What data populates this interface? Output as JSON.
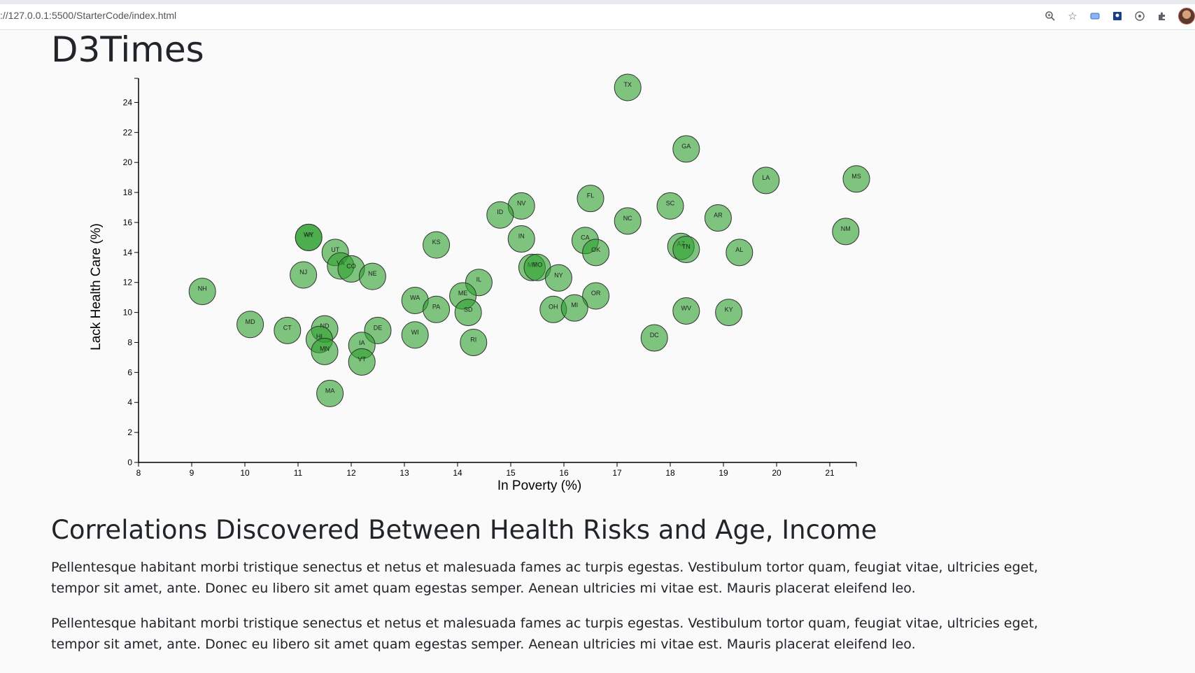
{
  "browser": {
    "url": "://127.0.0.1:5500/StarterCode/index.html",
    "icons": [
      "zoom-icon",
      "bookmark-star-icon",
      "extension-icon",
      "screen-icon",
      "sync-icon",
      "puzzle-icon"
    ]
  },
  "page": {
    "title": "D3Times",
    "section_heading": "Correlations Discovered Between Health Risks and Age, Income",
    "paragraphs": [
      "Pellentesque habitant morbi tristique senectus et netus et malesuada fames ac turpis egestas. Vestibulum tortor quam, feugiat vitae, ultricies eget, tempor sit amet, ante. Donec eu libero sit amet quam egestas semper. Aenean ultricies mi vitae est. Mauris placerat eleifend leo.",
      "Pellentesque habitant morbi tristique senectus et netus et malesuada fames ac turpis egestas. Vestibulum tortor quam, feugiat vitae, ultricies eget, tempor sit amet, ante. Donec eu libero sit amet quam egestas semper. Aenean ultricies mi vitae est. Mauris placerat eleifend leo."
    ]
  },
  "chart_data": {
    "type": "scatter",
    "xlabel": "In Poverty (%)",
    "ylabel": "Lack Health Care (%)",
    "xlim": [
      8,
      21.5
    ],
    "ylim": [
      0,
      25
    ],
    "xticks": [
      8,
      9,
      10,
      11,
      12,
      13,
      14,
      15,
      16,
      17,
      18,
      19,
      20,
      21
    ],
    "yticks": [
      0,
      2,
      4,
      6,
      8,
      10,
      12,
      14,
      16,
      18,
      20,
      22,
      24
    ],
    "point_color": "#2ca02c",
    "points": [
      {
        "label": "TX",
        "x": 17.2,
        "y": 25.0
      },
      {
        "label": "GA",
        "x": 18.3,
        "y": 20.9
      },
      {
        "label": "LA",
        "x": 19.8,
        "y": 18.8
      },
      {
        "label": "MS",
        "x": 21.5,
        "y": 18.9
      },
      {
        "label": "FL",
        "x": 16.5,
        "y": 17.6
      },
      {
        "label": "NV",
        "x": 15.2,
        "y": 17.1
      },
      {
        "label": "SC",
        "x": 18.0,
        "y": 17.1
      },
      {
        "label": "ID",
        "x": 14.8,
        "y": 16.5
      },
      {
        "label": "NC",
        "x": 17.2,
        "y": 16.1
      },
      {
        "label": "AR",
        "x": 18.9,
        "y": 16.3
      },
      {
        "label": "NM",
        "x": 21.3,
        "y": 15.4
      },
      {
        "label": "AK",
        "x": 11.2,
        "y": 15.0
      },
      {
        "label": "WY",
        "x": 11.2,
        "y": 15.0
      },
      {
        "label": "IN",
        "x": 15.2,
        "y": 14.9
      },
      {
        "label": "KS",
        "x": 13.6,
        "y": 14.5
      },
      {
        "label": "CA",
        "x": 16.4,
        "y": 14.8
      },
      {
        "label": "AZ",
        "x": 18.2,
        "y": 14.4
      },
      {
        "label": "TN",
        "x": 18.3,
        "y": 14.2
      },
      {
        "label": "OK",
        "x": 16.6,
        "y": 14.0
      },
      {
        "label": "UT",
        "x": 11.7,
        "y": 14.0
      },
      {
        "label": "AL",
        "x": 19.3,
        "y": 14.0
      },
      {
        "label": "VA",
        "x": 11.8,
        "y": 13.1
      },
      {
        "label": "CO",
        "x": 12.0,
        "y": 12.9
      },
      {
        "label": "MT",
        "x": 15.4,
        "y": 13.0
      },
      {
        "label": "MO",
        "x": 15.5,
        "y": 13.0
      },
      {
        "label": "NJ",
        "x": 11.1,
        "y": 12.5
      },
      {
        "label": "NE",
        "x": 12.4,
        "y": 12.4
      },
      {
        "label": "NY",
        "x": 15.9,
        "y": 12.3
      },
      {
        "label": "IL",
        "x": 14.4,
        "y": 12.0
      },
      {
        "label": "NH",
        "x": 9.2,
        "y": 11.4
      },
      {
        "label": "ME",
        "x": 14.1,
        "y": 11.1
      },
      {
        "label": "OR",
        "x": 16.6,
        "y": 11.1
      },
      {
        "label": "WA",
        "x": 13.2,
        "y": 10.8
      },
      {
        "label": "PA",
        "x": 13.6,
        "y": 10.2
      },
      {
        "label": "OH",
        "x": 15.8,
        "y": 10.2
      },
      {
        "label": "MI",
        "x": 16.2,
        "y": 10.3
      },
      {
        "label": "WV",
        "x": 18.3,
        "y": 10.1
      },
      {
        "label": "KY",
        "x": 19.1,
        "y": 10.0
      },
      {
        "label": "SD",
        "x": 14.2,
        "y": 10.0
      },
      {
        "label": "MD",
        "x": 10.1,
        "y": 9.2
      },
      {
        "label": "CT",
        "x": 10.8,
        "y": 8.8
      },
      {
        "label": "ND",
        "x": 11.5,
        "y": 8.9
      },
      {
        "label": "DE",
        "x": 12.5,
        "y": 8.8
      },
      {
        "label": "WI",
        "x": 13.2,
        "y": 8.5
      },
      {
        "label": "DC",
        "x": 17.7,
        "y": 8.3
      },
      {
        "label": "HI",
        "x": 11.4,
        "y": 8.2
      },
      {
        "label": "RI",
        "x": 14.3,
        "y": 8.0
      },
      {
        "label": "IA",
        "x": 12.2,
        "y": 7.8
      },
      {
        "label": "MN",
        "x": 11.5,
        "y": 7.4
      },
      {
        "label": "VT",
        "x": 12.2,
        "y": 6.7
      },
      {
        "label": "MA",
        "x": 11.6,
        "y": 4.6
      }
    ]
  }
}
